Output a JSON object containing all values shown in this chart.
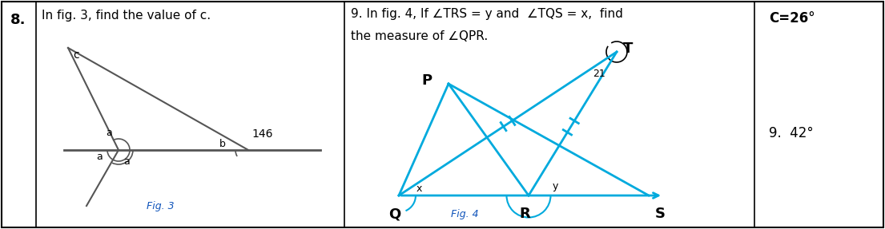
{
  "fig_width": 11.05,
  "fig_height": 2.87,
  "dpi": 100,
  "bg_color": "#ffffff",
  "border_color": "#000000",
  "row_num": "8.",
  "q8_text": "In fig. 3, find the value of c.",
  "q9_text_line1": "9. In fig. 4, If ∠TRS = y and  ∠TQS = x,  find",
  "q9_text_line2": "the measure of ∠QPR.",
  "ans8": "C=26°",
  "ans9": "9.  42°",
  "fig3_label": "Fig. 3",
  "fig4_label": "Fig. 4",
  "gray_color": "#555555",
  "cyan_color": "#00AADD",
  "angle_146": "146",
  "label_a": "a",
  "label_b": "b",
  "label_c": "c",
  "label_x": "x",
  "label_y": "y",
  "label_21": "21",
  "label_P": "P",
  "label_Q": "Q",
  "label_R": "R",
  "label_S": "S",
  "label_T": "T",
  "c1": 45,
  "c2": 430,
  "c3": 942
}
